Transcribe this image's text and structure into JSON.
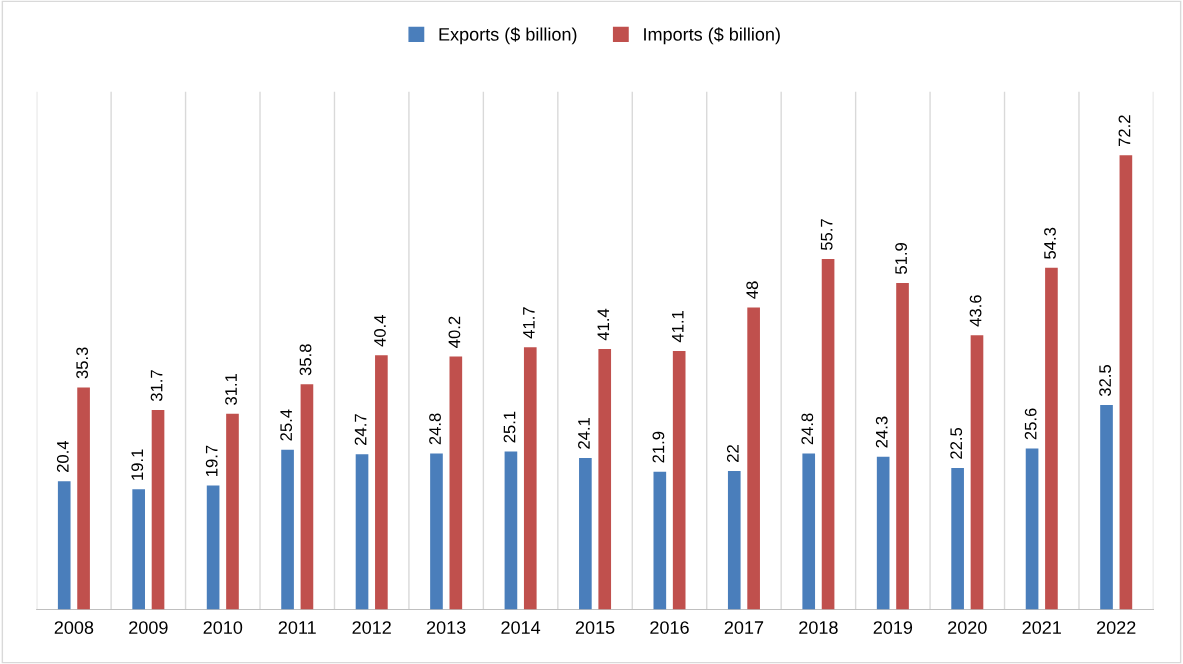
{
  "chart_data": {
    "type": "bar",
    "categories": [
      "2008",
      "2009",
      "2010",
      "2011",
      "2012",
      "2013",
      "2014",
      "2015",
      "2016",
      "2017",
      "2018",
      "2019",
      "2020",
      "2021",
      "2022"
    ],
    "series": [
      {
        "name": "Exports ($ billion)",
        "color": "#4a7ebb",
        "values": [
          20.4,
          19.1,
          19.7,
          25.4,
          24.7,
          24.8,
          25.1,
          24.1,
          21.9,
          22,
          24.8,
          24.3,
          22.5,
          25.6,
          32.5
        ]
      },
      {
        "name": "Imports ($ billion)",
        "color": "#c0504d",
        "values": [
          35.3,
          31.7,
          31.1,
          35.8,
          40.4,
          40.2,
          41.7,
          41.4,
          41.1,
          48,
          55.7,
          51.9,
          43.6,
          54.3,
          72.2
        ]
      }
    ],
    "data_labels": true,
    "grid": "x",
    "legend": "top"
  }
}
